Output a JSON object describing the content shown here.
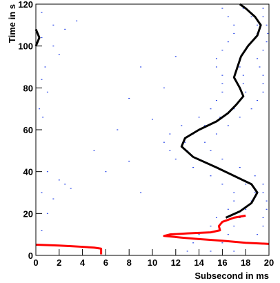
{
  "chart_data": {
    "type": "scatter",
    "xlabel": "Subsecond in ms",
    "ylabel": "Time in s",
    "xlim": [
      0,
      20
    ],
    "xticks": [
      0,
      2,
      4,
      6,
      8,
      10,
      12,
      14,
      16,
      18,
      20
    ],
    "ylim": [
      0,
      120
    ],
    "yticks": [
      0,
      20,
      40,
      60,
      80,
      100,
      120
    ],
    "series": [
      {
        "type": "scatter",
        "color": "#2846e8",
        "x": [
          13,
          15,
          17,
          13.5,
          16,
          18.5,
          14,
          16.5,
          19,
          15,
          17,
          19.5,
          15.5,
          17.5,
          19.5,
          16.5,
          18,
          19.8,
          17,
          18.5,
          19.8,
          17,
          18.8,
          19.5,
          16,
          18,
          19.5,
          15,
          17,
          18.8,
          13.5,
          15.5,
          17.5,
          12,
          14,
          16,
          11.5,
          13,
          15,
          11,
          12.8,
          14.5,
          11.5,
          13.5,
          15.5,
          12.5,
          14.5,
          16.5,
          14,
          15.8,
          17.5,
          15,
          17,
          18.5,
          15.5,
          17.5,
          19,
          16,
          18,
          19.5,
          16,
          17.8,
          19.5,
          16,
          17.8,
          19.5,
          15.5,
          17.5,
          19.2,
          15.5,
          17.5,
          19,
          16,
          18,
          19.5,
          16.5,
          18.5,
          19.8,
          17,
          19,
          19.9,
          17,
          19,
          19.8,
          16.5,
          18.5,
          19.5,
          16,
          17.8,
          19.5,
          0.5,
          1.5,
          2.5,
          3.5,
          0.5,
          1.5,
          2,
          0.8,
          0.5,
          1,
          0.3,
          0.6,
          1,
          2,
          3,
          0.5,
          1.5,
          2.5,
          1,
          0.5,
          5,
          7,
          8,
          9,
          10,
          11,
          6,
          9,
          12,
          8
        ],
        "y": [
          2,
          2,
          2,
          6,
          6,
          6,
          10,
          10,
          10,
          14,
          14,
          14,
          18,
          18,
          18,
          22,
          22,
          22,
          26,
          26,
          26,
          30,
          30,
          30,
          34,
          34,
          34,
          38,
          38,
          38,
          42,
          42,
          42,
          46,
          46,
          46,
          50,
          50,
          50,
          54,
          54,
          54,
          58,
          58,
          58,
          62,
          62,
          62,
          66,
          66,
          66,
          70,
          70,
          70,
          74,
          74,
          74,
          78,
          78,
          78,
          82,
          82,
          82,
          86,
          86,
          86,
          90,
          90,
          90,
          94,
          94,
          94,
          98,
          98,
          98,
          102,
          102,
          102,
          106,
          106,
          106,
          110,
          110,
          110,
          114,
          114,
          114,
          118,
          118,
          118,
          104,
          110,
          108,
          112,
          116,
          100,
          96,
          90,
          84,
          78,
          70,
          66,
          40,
          36,
          32,
          30,
          27,
          34,
          20,
          12,
          50,
          60,
          75,
          90,
          65,
          80,
          40,
          30,
          95,
          45
        ]
      },
      {
        "type": "line",
        "color": "#000000",
        "x": [
          16.3,
          17.5,
          18.5,
          19,
          18.5,
          17,
          15.5,
          13.5,
          12.5,
          12.8,
          14,
          15.5,
          16.5,
          17.2,
          17.8,
          17.5,
          17,
          17.3,
          17.6,
          18.2,
          19,
          19.3,
          18.8,
          18,
          17.5,
          null,
          0,
          0.3,
          0
        ],
        "y": [
          18,
          21,
          25,
          30,
          34,
          38,
          42,
          47,
          52,
          56,
          60,
          64,
          68,
          72,
          76,
          80,
          85,
          90,
          95,
          100,
          105,
          110,
          114,
          118,
          120,
          null,
          100,
          104,
          108
        ]
      },
      {
        "type": "line",
        "color": "#ff0000",
        "x": [
          0,
          1,
          2,
          3,
          4,
          5,
          5.6,
          5.6,
          null,
          20,
          18,
          16,
          14,
          12.5,
          11,
          11.5,
          13,
          15,
          15.8,
          15.7,
          16,
          16.5,
          17,
          18
        ],
        "y": [
          5.1,
          4.9,
          4.7,
          4.4,
          4.1,
          3.7,
          3.2,
          0.5,
          null,
          5.5,
          6,
          7,
          7.8,
          8.5,
          9.3,
          10,
          10.5,
          11,
          12,
          14,
          16,
          17,
          18,
          19
        ]
      }
    ]
  }
}
